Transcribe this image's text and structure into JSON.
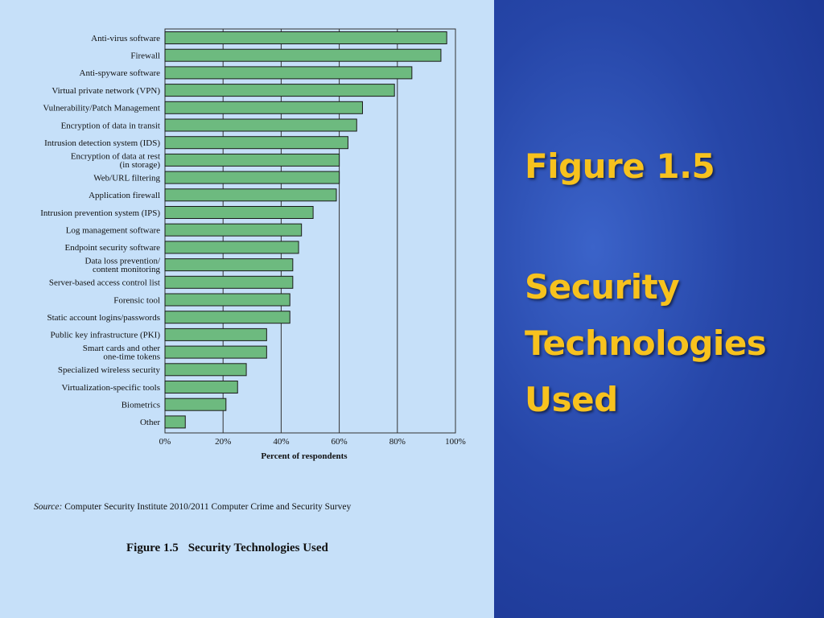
{
  "slide": {
    "heading_line1": "Figure 1.5",
    "heading_line2": "Security",
    "heading_line3": "Technologies",
    "heading_line4": "Used"
  },
  "figure": {
    "source_label": "Source:",
    "source_text": "Computer Security Institute 2010/2011 Computer Crime and Security Survey",
    "caption_number": "Figure 1.5",
    "caption_text": "Security Technologies Used"
  },
  "colors": {
    "bar_fill": "#6dba7f",
    "bar_stroke": "#1a1a1a",
    "left_background": "#c6e0f9",
    "title_color": "#f7c21e"
  },
  "chart_data": {
    "type": "bar",
    "orientation": "horizontal",
    "xlabel": "Percent of respondents",
    "xlim": [
      0,
      100
    ],
    "xticks": [
      "0%",
      "20%",
      "40%",
      "60%",
      "80%",
      "100%"
    ],
    "grid": true,
    "categories": [
      [
        "Anti-virus software"
      ],
      [
        "Firewall"
      ],
      [
        "Anti-spyware software"
      ],
      [
        "Virtual private network (VPN)"
      ],
      [
        "Vulnerability/Patch Management"
      ],
      [
        "Encryption of data in transit"
      ],
      [
        "Intrusion detection system (IDS)"
      ],
      [
        "Encryption of data at rest",
        "(in storage)"
      ],
      [
        "Web/URL filtering"
      ],
      [
        "Application firewall"
      ],
      [
        "Intrusion prevention system (IPS)"
      ],
      [
        "Log management software"
      ],
      [
        "Endpoint security software"
      ],
      [
        "Data loss prevention/",
        "content monitoring"
      ],
      [
        "Server-based access control list"
      ],
      [
        "Forensic tool"
      ],
      [
        "Static account logins/passwords"
      ],
      [
        "Public key infrastructure (PKI)"
      ],
      [
        "Smart cards and other",
        "one-time tokens"
      ],
      [
        "Specialized wireless security"
      ],
      [
        "Virtualization-specific tools"
      ],
      [
        "Biometrics"
      ],
      [
        "Other"
      ]
    ],
    "values": [
      97,
      95,
      85,
      79,
      68,
      66,
      63,
      60,
      60,
      59,
      51,
      47,
      46,
      44,
      44,
      43,
      43,
      35,
      35,
      28,
      25,
      21,
      7
    ]
  }
}
